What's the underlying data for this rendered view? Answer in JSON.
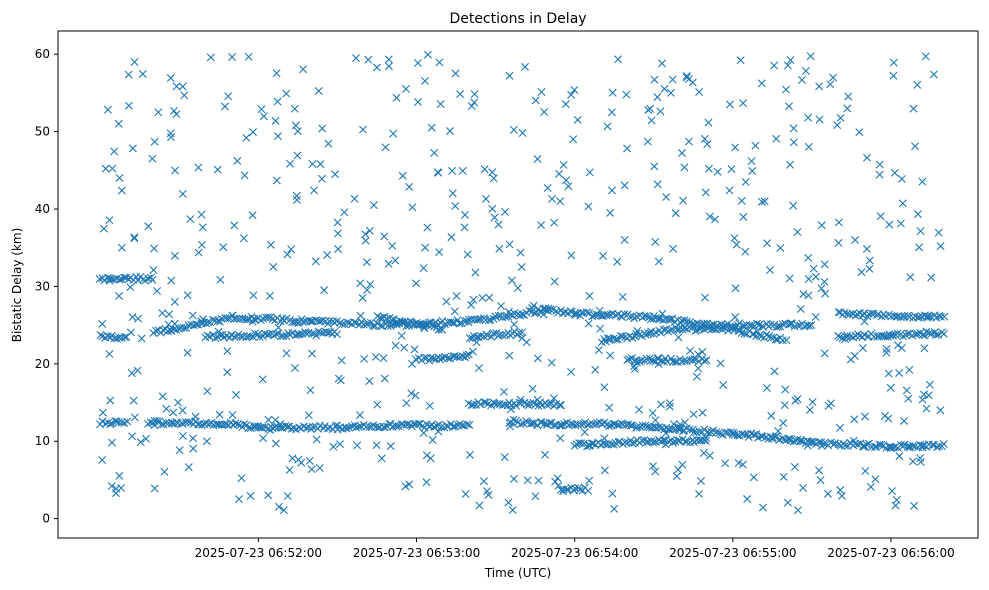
{
  "chart_data": {
    "type": "scatter",
    "title": "Detections in Delay",
    "xlabel": "Time (UTC)",
    "ylabel": "Bistatic Delay (km)",
    "marker": "x",
    "color": "#1f77b4",
    "grid": false,
    "legend": "none",
    "xlim": [
      "2025-07-23 06:50:44",
      "2025-07-23 06:56:33"
    ],
    "ylim": [
      -2.5,
      63
    ],
    "xticks": [
      "2025-07-23 06:52:00",
      "2025-07-23 06:53:00",
      "2025-07-23 06:54:00",
      "2025-07-23 06:55:00",
      "2025-07-23 06:56:00"
    ],
    "yticks": [
      0,
      10,
      20,
      30,
      40,
      50,
      60
    ],
    "time_range": [
      "2025-07-23 06:51:00",
      "2025-07-23 06:56:20"
    ],
    "tracks": [
      {
        "segments": [
          [
            "06:51:00",
            12.4
          ],
          [
            "06:51:10",
            12.4
          ]
        ]
      },
      {
        "segments": [
          [
            "06:51:18",
            12.4
          ],
          [
            "06:51:45",
            12.3
          ],
          [
            "06:52:00",
            11.8
          ],
          [
            "06:52:30",
            11.8
          ],
          [
            "06:52:50",
            12.0
          ],
          [
            "06:53:05",
            12.0
          ],
          [
            "06:53:20",
            12.0
          ]
        ]
      },
      {
        "segments": [
          [
            "06:53:20",
            14.8
          ],
          [
            "06:53:55",
            14.8
          ]
        ]
      },
      {
        "segments": [
          [
            "06:53:35",
            12.5
          ],
          [
            "06:53:55",
            12.2
          ],
          [
            "06:54:15",
            12.2
          ],
          [
            "06:54:40",
            11.5
          ],
          [
            "06:55:00",
            11.0
          ],
          [
            "06:55:15",
            10.5
          ],
          [
            "06:55:30",
            9.8
          ],
          [
            "06:55:50",
            9.5
          ],
          [
            "06:56:00",
            9.3
          ],
          [
            "06:56:20",
            9.5
          ]
        ]
      },
      {
        "segments": [
          [
            "06:54:00",
            9.5
          ],
          [
            "06:54:30",
            10.0
          ],
          [
            "06:54:50",
            10.0
          ]
        ]
      },
      {
        "segments": [
          [
            "06:51:00",
            23.5
          ],
          [
            "06:51:10",
            23.5
          ]
        ]
      },
      {
        "segments": [
          [
            "06:51:20",
            24.0
          ],
          [
            "06:51:50",
            26.0
          ],
          [
            "06:52:20",
            25.5
          ],
          [
            "06:52:50",
            25.0
          ],
          [
            "06:53:20",
            25.5
          ],
          [
            "06:53:50",
            27.0
          ],
          [
            "06:54:00",
            26.5
          ]
        ]
      },
      {
        "segments": [
          [
            "06:51:40",
            23.5
          ],
          [
            "06:52:30",
            24.0
          ]
        ]
      },
      {
        "segments": [
          [
            "06:52:45",
            26.0
          ],
          [
            "06:53:10",
            24.5
          ]
        ]
      },
      {
        "segments": [
          [
            "06:53:20",
            23.5
          ],
          [
            "06:53:40",
            24.0
          ]
        ]
      },
      {
        "segments": [
          [
            "06:54:00",
            26.5
          ],
          [
            "06:54:30",
            26.0
          ],
          [
            "06:54:50",
            25.0
          ],
          [
            "06:55:10",
            25.0
          ],
          [
            "06:55:30",
            25.0
          ]
        ]
      },
      {
        "segments": [
          [
            "06:54:10",
            23.0
          ],
          [
            "06:54:40",
            24.5
          ],
          [
            "06:55:00",
            24.5
          ],
          [
            "06:55:20",
            23.0
          ]
        ]
      },
      {
        "segments": [
          [
            "06:54:20",
            20.5
          ],
          [
            "06:54:50",
            20.5
          ]
        ]
      },
      {
        "segments": [
          [
            "06:55:40",
            26.5
          ],
          [
            "06:56:20",
            26.0
          ]
        ]
      },
      {
        "segments": [
          [
            "06:55:40",
            23.5
          ],
          [
            "06:56:20",
            24.0
          ]
        ]
      },
      {
        "segments": [
          [
            "06:51:00",
            31.0
          ],
          [
            "06:51:20",
            31.0
          ]
        ]
      },
      {
        "segments": [
          [
            "06:53:00",
            20.5
          ],
          [
            "06:53:20",
            21.0
          ]
        ]
      },
      {
        "segments": [
          [
            "06:53:55",
            3.8
          ],
          [
            "06:54:05",
            3.8
          ]
        ]
      }
    ],
    "noise_count": 650
  }
}
